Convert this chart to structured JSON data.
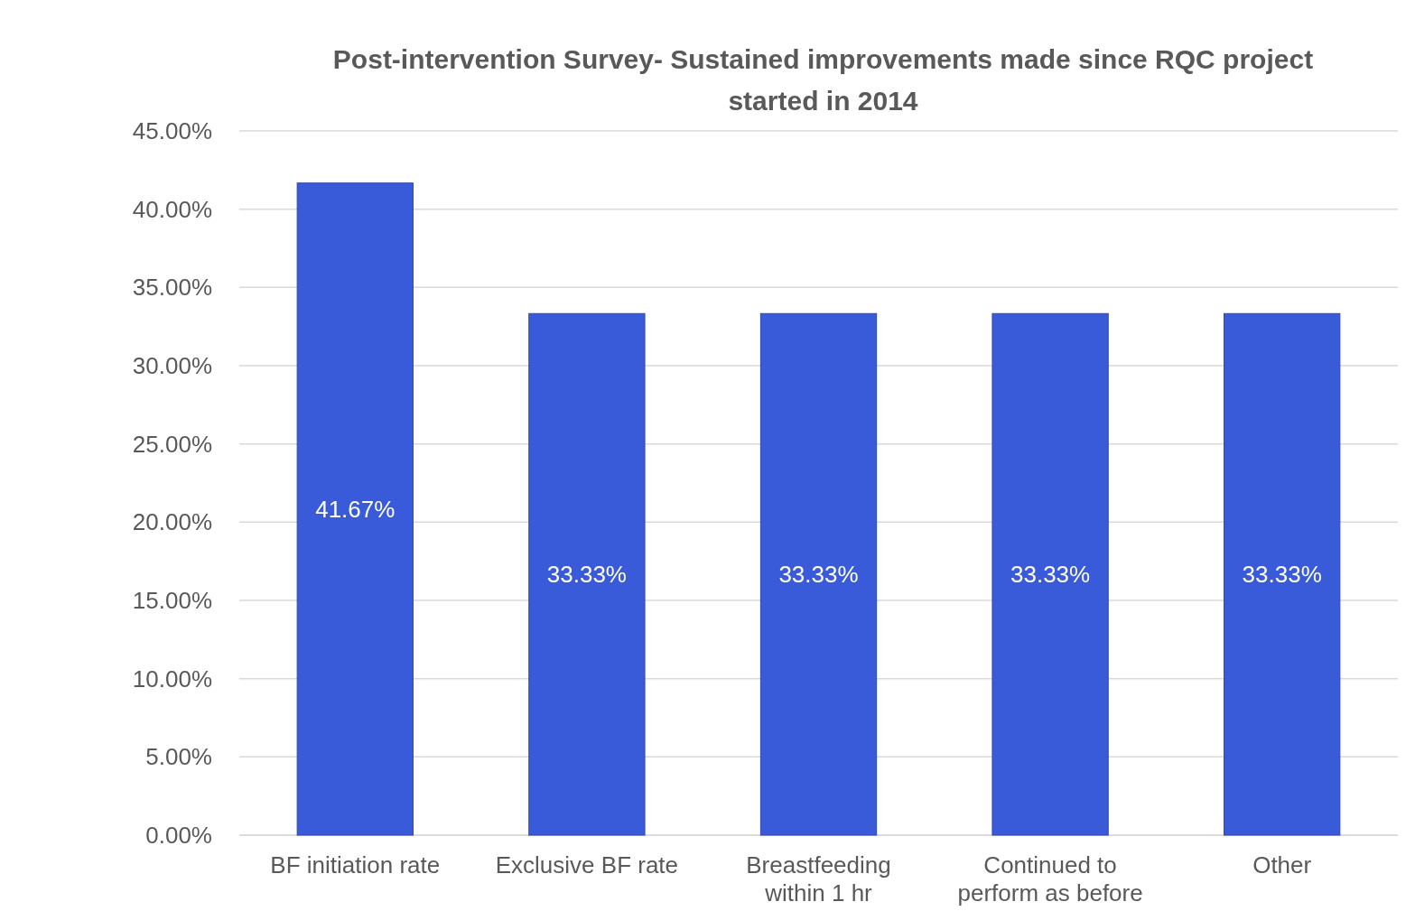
{
  "chart_data": {
    "type": "bar",
    "title": "Post-intervention Survey- Sustained improvements made since RQC project started in 2014",
    "categories": [
      "BF initiation rate",
      "Exclusive BF rate",
      "Breastfeeding within 1 hr",
      "Continued to perform as before",
      "Other"
    ],
    "values": [
      41.67,
      33.33,
      33.33,
      33.33,
      33.33
    ],
    "value_labels": [
      "41.67%",
      "33.33%",
      "33.33%",
      "33.33%",
      "33.33%"
    ],
    "color": "#3a5bd9",
    "ylim": [
      0,
      45
    ],
    "yticks": [
      {
        "value": 0,
        "label": "0.00%"
      },
      {
        "value": 5,
        "label": "5.00%"
      },
      {
        "value": 10,
        "label": "10.00%"
      },
      {
        "value": 15,
        "label": "15.00%"
      },
      {
        "value": 20,
        "label": "20.00%"
      },
      {
        "value": 25,
        "label": "25.00%"
      },
      {
        "value": 30,
        "label": "30.00%"
      },
      {
        "value": 35,
        "label": "35.00%"
      },
      {
        "value": 40,
        "label": "40.00%"
      },
      {
        "value": 45,
        "label": "45.00%"
      }
    ],
    "grid": "y"
  }
}
